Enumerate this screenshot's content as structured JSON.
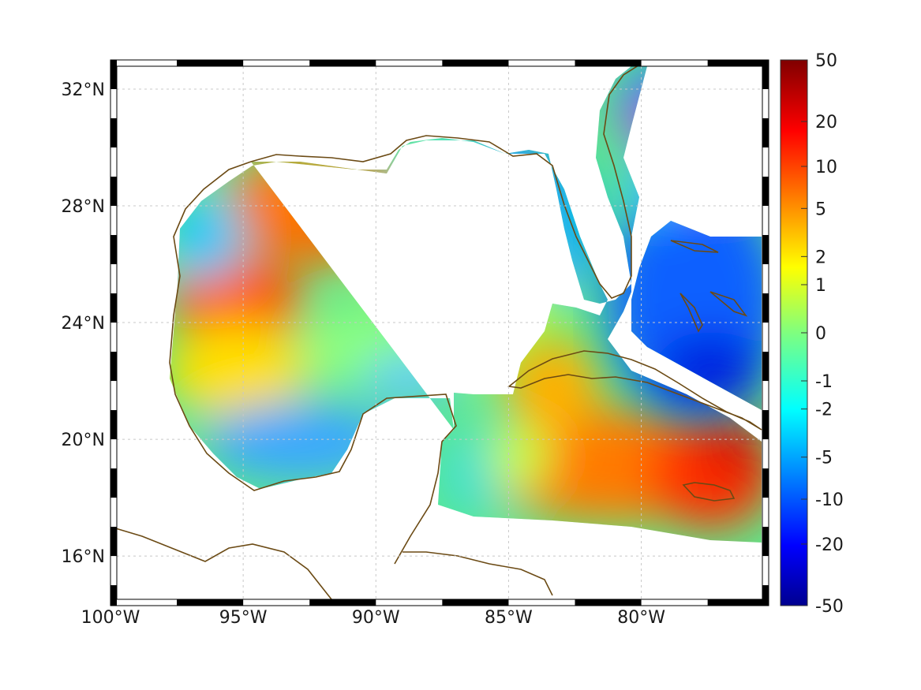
{
  "map": {
    "lon_range": [
      -100,
      -75.2
    ],
    "lat_range": [
      14.3,
      33.0
    ],
    "lon_ticks": [
      {
        "lon": -100,
        "label": "100°W"
      },
      {
        "lon": -95,
        "label": "95°W"
      },
      {
        "lon": -90,
        "label": "90°W"
      },
      {
        "lon": -85,
        "label": "85°W"
      },
      {
        "lon": -80,
        "label": "80°W"
      }
    ],
    "lat_ticks": [
      {
        "lat": 16,
        "label": "16°N"
      },
      {
        "lat": 20,
        "label": "20°N"
      },
      {
        "lat": 24,
        "label": "24°N"
      },
      {
        "lat": 28,
        "label": "28°N"
      },
      {
        "lat": 32,
        "label": "32°N"
      }
    ],
    "grid": true,
    "frame": "black-white alternating border",
    "coastline_color": "#6b4a14",
    "colormap": "jet",
    "field_description": "color-shaded field over the Gulf of Mexico and Caribbean"
  },
  "colorbar": {
    "position": "right",
    "scale": "symmetric nonlinear",
    "ticks": [
      {
        "value": 50,
        "label": "50"
      },
      {
        "value": 20,
        "label": "20"
      },
      {
        "value": 10,
        "label": "10"
      },
      {
        "value": 5,
        "label": "5"
      },
      {
        "value": 2,
        "label": "2"
      },
      {
        "value": 1,
        "label": "1"
      },
      {
        "value": 0,
        "label": "0"
      },
      {
        "value": -1,
        "label": "-1"
      },
      {
        "value": -2,
        "label": "-2"
      },
      {
        "value": -5,
        "label": "-5"
      },
      {
        "value": -10,
        "label": "-10"
      },
      {
        "value": -20,
        "label": "-20"
      },
      {
        "value": -50,
        "label": "-50"
      }
    ]
  }
}
